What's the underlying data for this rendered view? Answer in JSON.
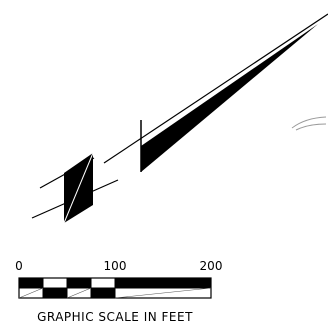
{
  "colors": {
    "ink": "#000000",
    "background": "#ffffff",
    "faint_line": "#9a9a9a"
  },
  "scale_bar": {
    "tick_labels": [
      "0",
      "100",
      "200"
    ],
    "caption": "GRAPHIC SCALE IN FEET",
    "units": "feet",
    "min": 0,
    "max": 200
  }
}
